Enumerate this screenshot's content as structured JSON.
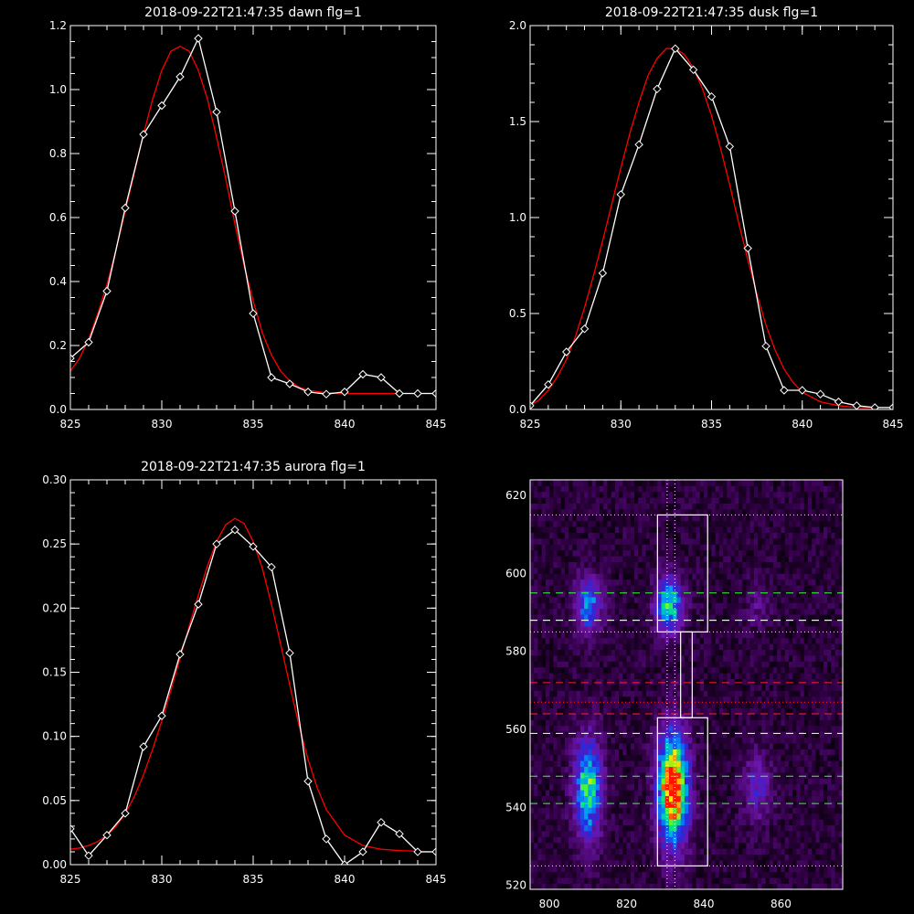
{
  "chart_data": [
    {
      "type": "line",
      "title": "2018-09-22T21:47:35 dawn flg=1",
      "xlim": [
        825,
        845
      ],
      "ylim": [
        0,
        1.2
      ],
      "x_ticks": [
        "825",
        "830",
        "835",
        "840",
        "845"
      ],
      "y_ticks": [
        "0.0",
        "0.2",
        "0.4",
        "0.6",
        "0.8",
        "1.0",
        "1.2"
      ],
      "series": [
        {
          "color": "#ffffff",
          "markers": "diamond",
          "x": [
            825,
            826,
            827,
            828,
            829,
            830,
            831,
            832,
            833,
            834,
            835,
            836,
            837,
            838,
            839,
            840,
            841,
            842,
            843,
            844,
            845
          ],
          "y": [
            0.16,
            0.21,
            0.37,
            0.63,
            0.86,
            0.95,
            1.04,
            1.16,
            0.93,
            0.62,
            0.3,
            0.1,
            0.08,
            0.055,
            0.048,
            0.055,
            0.11,
            0.1,
            0.05,
            0.05,
            0.05
          ]
        },
        {
          "color": "#ff0000",
          "x": [
            825,
            825.5,
            826,
            826.5,
            827,
            827.5,
            828,
            828.5,
            829,
            829.5,
            830,
            830.5,
            831,
            831.5,
            832,
            832.5,
            833,
            833.5,
            834,
            834.5,
            835,
            835.5,
            836,
            836.5,
            837,
            837.5,
            838,
            839,
            840,
            842,
            845
          ],
          "y": [
            0.12,
            0.16,
            0.22,
            0.3,
            0.39,
            0.5,
            0.62,
            0.74,
            0.86,
            0.97,
            1.06,
            1.12,
            1.135,
            1.12,
            1.06,
            0.97,
            0.85,
            0.72,
            0.58,
            0.45,
            0.34,
            0.24,
            0.17,
            0.12,
            0.09,
            0.07,
            0.06,
            0.052,
            0.05,
            0.05,
            0.05
          ]
        }
      ]
    },
    {
      "type": "line",
      "title": "2018-09-22T21:47:35 dusk flg=1",
      "xlim": [
        825,
        845
      ],
      "ylim": [
        0,
        2.0
      ],
      "x_ticks": [
        "825",
        "830",
        "835",
        "840",
        "845"
      ],
      "y_ticks": [
        "0.0",
        "0.5",
        "1.0",
        "1.5",
        "2.0"
      ],
      "series": [
        {
          "color": "#ffffff",
          "markers": "diamond",
          "x": [
            825,
            826,
            827,
            828,
            829,
            830,
            831,
            832,
            833,
            834,
            835,
            836,
            837,
            838,
            839,
            840,
            841,
            842,
            843,
            844,
            845
          ],
          "y": [
            0.02,
            0.13,
            0.3,
            0.42,
            0.71,
            1.12,
            1.38,
            1.67,
            1.88,
            1.77,
            1.63,
            1.37,
            0.84,
            0.33,
            0.1,
            0.1,
            0.08,
            0.04,
            0.02,
            0.01,
            0.01
          ]
        },
        {
          "color": "#ff0000",
          "x": [
            825,
            825.5,
            826,
            826.5,
            827,
            827.5,
            828,
            828.5,
            829,
            829.5,
            830,
            830.5,
            831,
            831.5,
            832,
            832.5,
            833,
            833.5,
            834,
            834.5,
            835,
            835.5,
            836,
            836.5,
            837,
            837.5,
            838,
            838.5,
            839,
            839.5,
            840,
            841,
            842,
            843,
            845
          ],
          "y": [
            0.02,
            0.05,
            0.1,
            0.17,
            0.26,
            0.38,
            0.53,
            0.7,
            0.88,
            1.07,
            1.26,
            1.44,
            1.6,
            1.74,
            1.83,
            1.88,
            1.88,
            1.85,
            1.78,
            1.67,
            1.53,
            1.36,
            1.17,
            0.97,
            0.78,
            0.6,
            0.44,
            0.31,
            0.21,
            0.14,
            0.09,
            0.04,
            0.02,
            0.01,
            0.01
          ]
        }
      ]
    },
    {
      "type": "line",
      "title": "2018-09-22T21:47:35 aurora flg=1",
      "xlim": [
        825,
        845
      ],
      "ylim": [
        0,
        0.3
      ],
      "x_ticks": [
        "825",
        "830",
        "835",
        "840",
        "845"
      ],
      "y_ticks": [
        "0.00",
        "0.05",
        "0.10",
        "0.15",
        "0.20",
        "0.25",
        "0.30"
      ],
      "series": [
        {
          "color": "#ffffff",
          "markers": "diamond",
          "x": [
            825,
            826,
            827,
            828,
            829,
            830,
            831,
            832,
            833,
            834,
            835,
            836,
            837,
            838,
            839,
            840,
            841,
            842,
            843,
            844,
            845
          ],
          "y": [
            0.028,
            0.007,
            0.023,
            0.04,
            0.092,
            0.116,
            0.164,
            0.203,
            0.25,
            0.261,
            0.248,
            0.232,
            0.165,
            0.065,
            0.02,
            0.0,
            0.01,
            0.033,
            0.024,
            0.01,
            0.01
          ]
        },
        {
          "color": "#ff0000",
          "x": [
            825,
            825.5,
            826,
            826.5,
            827,
            827.5,
            828,
            828.5,
            829,
            829.5,
            830,
            830.5,
            831,
            831.5,
            832,
            832.5,
            833,
            833.5,
            834,
            834.5,
            835,
            835.5,
            836,
            836.5,
            837,
            837.5,
            838,
            838.5,
            839,
            840,
            841,
            842,
            843,
            845
          ],
          "y": [
            0.012,
            0.013,
            0.015,
            0.018,
            0.023,
            0.03,
            0.04,
            0.053,
            0.07,
            0.09,
            0.112,
            0.136,
            0.161,
            0.186,
            0.21,
            0.233,
            0.252,
            0.265,
            0.27,
            0.266,
            0.252,
            0.231,
            0.203,
            0.172,
            0.14,
            0.109,
            0.082,
            0.06,
            0.043,
            0.023,
            0.015,
            0.012,
            0.011,
            0.01
          ]
        }
      ]
    },
    {
      "type": "heatmap",
      "xlim": [
        795,
        876
      ],
      "ylim": [
        519,
        624
      ],
      "x_ticks": [
        "800",
        "820",
        "840",
        "860"
      ],
      "y_ticks": [
        "520",
        "540",
        "560",
        "580",
        "600",
        "620"
      ],
      "blobs": [
        {
          "x": 810,
          "y": 592,
          "sx": 2.5,
          "sy": 5,
          "amp": 0.45
        },
        {
          "x": 810,
          "y": 545,
          "sx": 2.5,
          "sy": 9,
          "amp": 0.65
        },
        {
          "x": 831,
          "y": 592,
          "sx": 2.5,
          "sy": 5,
          "amp": 0.6
        },
        {
          "x": 832,
          "y": 545,
          "sx": 2.8,
          "sy": 10,
          "amp": 1.0
        },
        {
          "x": 854,
          "y": 545,
          "sx": 2.5,
          "sy": 6,
          "amp": 0.28
        },
        {
          "x": 854,
          "y": 592,
          "sx": 2,
          "sy": 4,
          "amp": 0.15
        }
      ],
      "boxes": [
        {
          "x0": 828,
          "x1": 841,
          "y0": 585,
          "y1": 615,
          "color": "#ffffff"
        },
        {
          "x0": 828,
          "x1": 841,
          "y0": 525,
          "y1": 563,
          "color": "#ffffff"
        },
        {
          "x0": 834,
          "x1": 837,
          "y0": 563,
          "y1": 585,
          "color": "#ffffff"
        }
      ],
      "hlines": [
        {
          "y": 615,
          "color": "#ffff66",
          "style": "dotted"
        },
        {
          "y": 595,
          "color": "#33ff33",
          "style": "dashed"
        },
        {
          "y": 588,
          "color": "#33ff33",
          "style": "dashed"
        },
        {
          "y": 588,
          "color": "#ffffff",
          "style": "dashed"
        },
        {
          "y": 585,
          "color": "#ffff66",
          "style": "dotted"
        },
        {
          "y": 572,
          "color": "#ff2222",
          "style": "dashed"
        },
        {
          "y": 567,
          "color": "#ff2222",
          "style": "dotted"
        },
        {
          "y": 564,
          "color": "#ff2222",
          "style": "dashed"
        },
        {
          "y": 559,
          "color": "#ffffff",
          "style": "dashed"
        },
        {
          "y": 548,
          "color": "#33ff33",
          "style": "dashed"
        },
        {
          "y": 541,
          "color": "#33ff33",
          "style": "dashed"
        },
        {
          "y": 525,
          "color": "#ffff66",
          "style": "dotted"
        }
      ],
      "vlines": [
        {
          "x": 830.5,
          "color": "#ffffff",
          "style": "dotted"
        },
        {
          "x": 832.5,
          "color": "#ffffff",
          "style": "dotted"
        }
      ]
    }
  ]
}
